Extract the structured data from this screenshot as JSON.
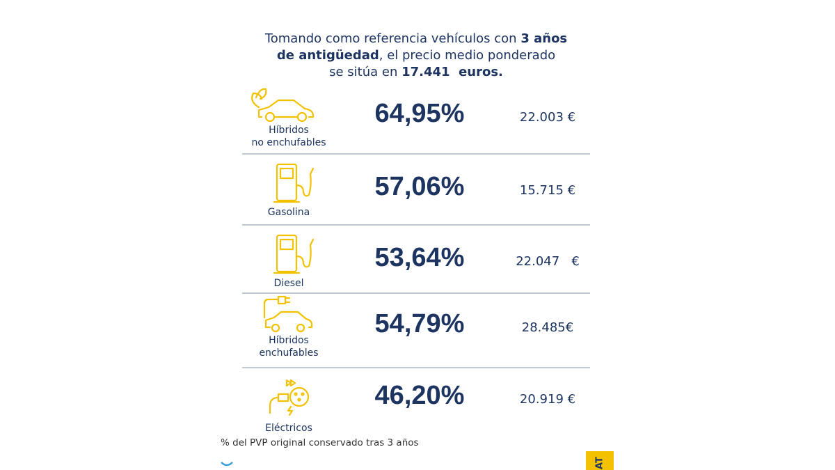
{
  "intro": {
    "lines": [
      [
        {
          "text": "Tomando como referencia vehículos con ",
          "bold": false
        },
        {
          "text": "3 años",
          "bold": true
        }
      ],
      [
        {
          "text": "de antigüedad",
          "bold": true
        },
        {
          "text": ", el precio medio ponderado",
          "bold": false
        }
      ],
      [
        {
          "text": "se sitúa en ",
          "bold": false
        },
        {
          "text": "17.441  euros.",
          "bold": true
        }
      ]
    ]
  },
  "rows": [
    {
      "label": [
        "Híbridos",
        "no enchufables"
      ],
      "percent": "64,95%",
      "price": "22.003 €"
    },
    {
      "label": [
        "Gasolina"
      ],
      "percent": "57,06%",
      "price": "15.715 €"
    },
    {
      "label": [
        "Diesel"
      ],
      "percent": "53,64%",
      "price": "22.047   €"
    },
    {
      "label": [
        "Híbridos",
        "enchufables"
      ],
      "percent": "54,79%",
      "price": "28.485€"
    },
    {
      "label": [
        "Eléctricos"
      ],
      "percent": "46,20%",
      "price": "20.919 €"
    }
  ],
  "footnote": "% del PVP original conservado tras 3 años"
}
